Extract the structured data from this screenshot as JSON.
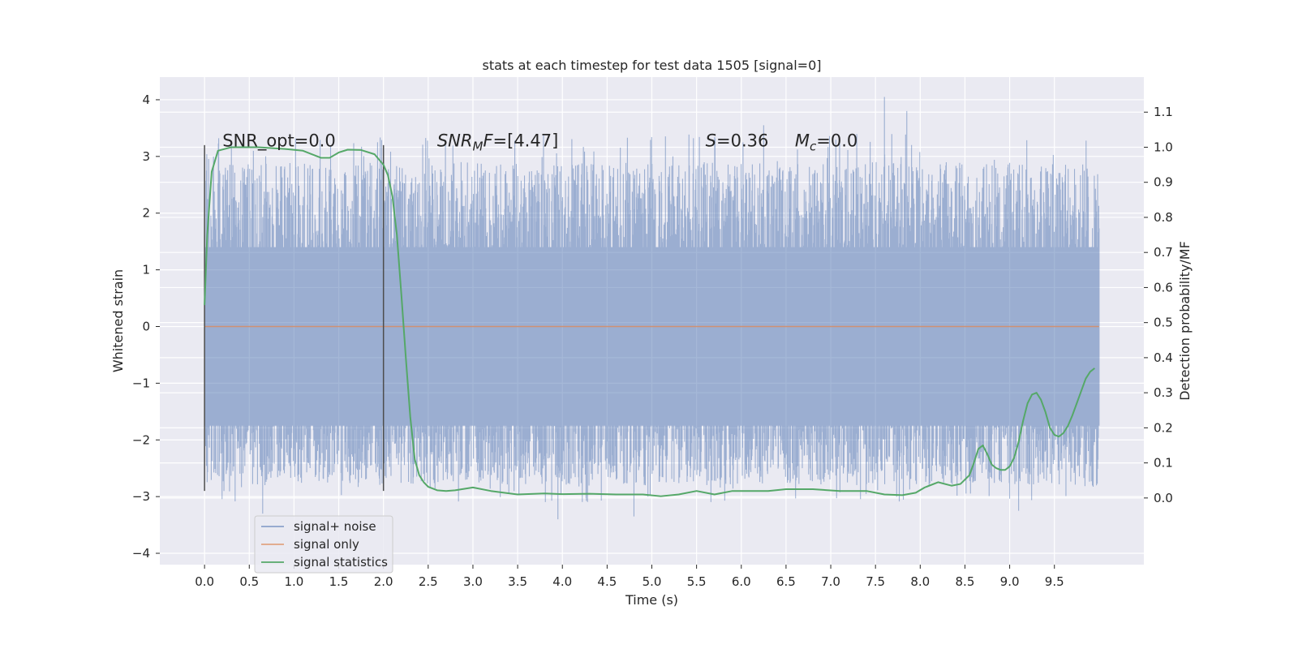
{
  "chart_data": {
    "type": "line",
    "title": "stats at each timestep for test data 1505 [signal=0]",
    "xlabel": "Time (s)",
    "ylabel": "Whitened strain",
    "ylabel_right": "Detection probability/MF",
    "xlim": [
      -0.5,
      10.5
    ],
    "ylim": [
      -4.2,
      4.4
    ],
    "ylim_right": [
      -0.19,
      1.2
    ],
    "x_ticks": [
      "0.0",
      "0.5",
      "1.0",
      "1.5",
      "2.0",
      "2.5",
      "3.0",
      "3.5",
      "4.0",
      "4.5",
      "5.0",
      "5.5",
      "6.0",
      "6.5",
      "7.0",
      "7.5",
      "8.0",
      "8.5",
      "9.0",
      "9.5"
    ],
    "y_ticks": [
      "−4",
      "−3",
      "−2",
      "−1",
      "0",
      "1",
      "2",
      "3",
      "4"
    ],
    "y_ticks_right": [
      "0.0",
      "0.1",
      "0.2",
      "0.3",
      "0.4",
      "0.5",
      "0.6",
      "0.7",
      "0.8",
      "0.9",
      "1.0",
      "1.1"
    ],
    "grid": true,
    "legend_position": "lower-left",
    "colors": {
      "background": "#eaeaf2",
      "noise": "#4c72b0",
      "signal": "#dd8452",
      "stats": "#55a868",
      "marker": "#4d4d4d"
    },
    "annotations": [
      {
        "id": "snr-opt",
        "x": 0.2,
        "y": 3.18,
        "segments": [
          {
            "text": "SNR_opt=0.0",
            "italic": false
          }
        ]
      },
      {
        "id": "snr-mf",
        "x": 2.6,
        "y": 3.18,
        "segments": [
          {
            "text": "SNR",
            "italic": true
          },
          {
            "text": "M",
            "italic": true,
            "sub": true
          },
          {
            "text": "F",
            "italic": true
          },
          {
            "text": "=[4.47]",
            "italic": false
          }
        ]
      },
      {
        "id": "s-value",
        "x": 5.6,
        "y": 3.18,
        "segments": [
          {
            "text": "S",
            "italic": true
          },
          {
            "text": "=0.36",
            "italic": false
          }
        ]
      },
      {
        "id": "mc-value",
        "x": 6.6,
        "y": 3.18,
        "segments": [
          {
            "text": "M",
            "italic": true
          },
          {
            "text": "c",
            "italic": true,
            "sub": true
          },
          {
            "text": "=0.0",
            "italic": false
          }
        ]
      }
    ],
    "vertical_markers": [
      {
        "x": 0.0,
        "y_range": [
          -2.9,
          3.2
        ]
      },
      {
        "x": 2.0,
        "y_range": [
          -2.9,
          3.2
        ]
      }
    ],
    "series": [
      {
        "name": "signal+ noise",
        "axis": "left",
        "x_range": [
          0.0,
          10.0
        ],
        "core_range": [
          -1.75,
          1.4
        ],
        "notable_peaks": [
          [
            7.6,
            4.05
          ],
          [
            7.85,
            3.8
          ],
          [
            6.25,
            3.55
          ],
          [
            0.65,
            -3.3
          ],
          [
            3.95,
            -3.4
          ],
          [
            4.8,
            -3.35
          ],
          [
            9.1,
            -3.25
          ]
        ]
      },
      {
        "name": "signal only",
        "axis": "left",
        "x": [
          0.0,
          10.0
        ],
        "y": [
          0.0,
          0.0
        ]
      },
      {
        "name": "signal statistics",
        "axis": "right",
        "x": [
          0.0,
          0.03,
          0.08,
          0.15,
          0.3,
          0.6,
          0.9,
          1.1,
          1.3,
          1.4,
          1.5,
          1.6,
          1.75,
          1.9,
          2.0,
          2.05,
          2.1,
          2.15,
          2.2,
          2.25,
          2.3,
          2.35,
          2.4,
          2.45,
          2.5,
          2.6,
          2.7,
          2.8,
          3.0,
          3.2,
          3.5,
          3.8,
          4.0,
          4.3,
          4.6,
          4.9,
          5.1,
          5.3,
          5.5,
          5.7,
          5.9,
          6.1,
          6.3,
          6.5,
          6.8,
          7.1,
          7.4,
          7.6,
          7.8,
          7.95,
          8.05,
          8.2,
          8.35,
          8.45,
          8.55,
          8.6,
          8.65,
          8.7,
          8.75,
          8.8,
          8.85,
          8.9,
          8.95,
          9.0,
          9.05,
          9.1,
          9.15,
          9.2,
          9.25,
          9.3,
          9.35,
          9.4,
          9.45,
          9.5,
          9.55,
          9.6,
          9.65,
          9.7,
          9.75,
          9.8,
          9.85,
          9.9,
          9.95
        ],
        "y": [
          0.55,
          0.75,
          0.93,
          0.99,
          1.0,
          1.0,
          0.995,
          0.99,
          0.97,
          0.97,
          0.985,
          0.993,
          0.992,
          0.98,
          0.95,
          0.92,
          0.86,
          0.75,
          0.58,
          0.4,
          0.23,
          0.11,
          0.065,
          0.045,
          0.032,
          0.022,
          0.02,
          0.022,
          0.03,
          0.02,
          0.01,
          0.013,
          0.011,
          0.012,
          0.01,
          0.01,
          0.005,
          0.01,
          0.02,
          0.01,
          0.02,
          0.02,
          0.02,
          0.025,
          0.025,
          0.02,
          0.02,
          0.01,
          0.008,
          0.015,
          0.03,
          0.045,
          0.035,
          0.04,
          0.065,
          0.1,
          0.14,
          0.15,
          0.125,
          0.095,
          0.085,
          0.08,
          0.08,
          0.09,
          0.115,
          0.16,
          0.22,
          0.27,
          0.295,
          0.3,
          0.28,
          0.245,
          0.2,
          0.18,
          0.175,
          0.185,
          0.205,
          0.235,
          0.27,
          0.305,
          0.34,
          0.36,
          0.37
        ]
      }
    ]
  }
}
